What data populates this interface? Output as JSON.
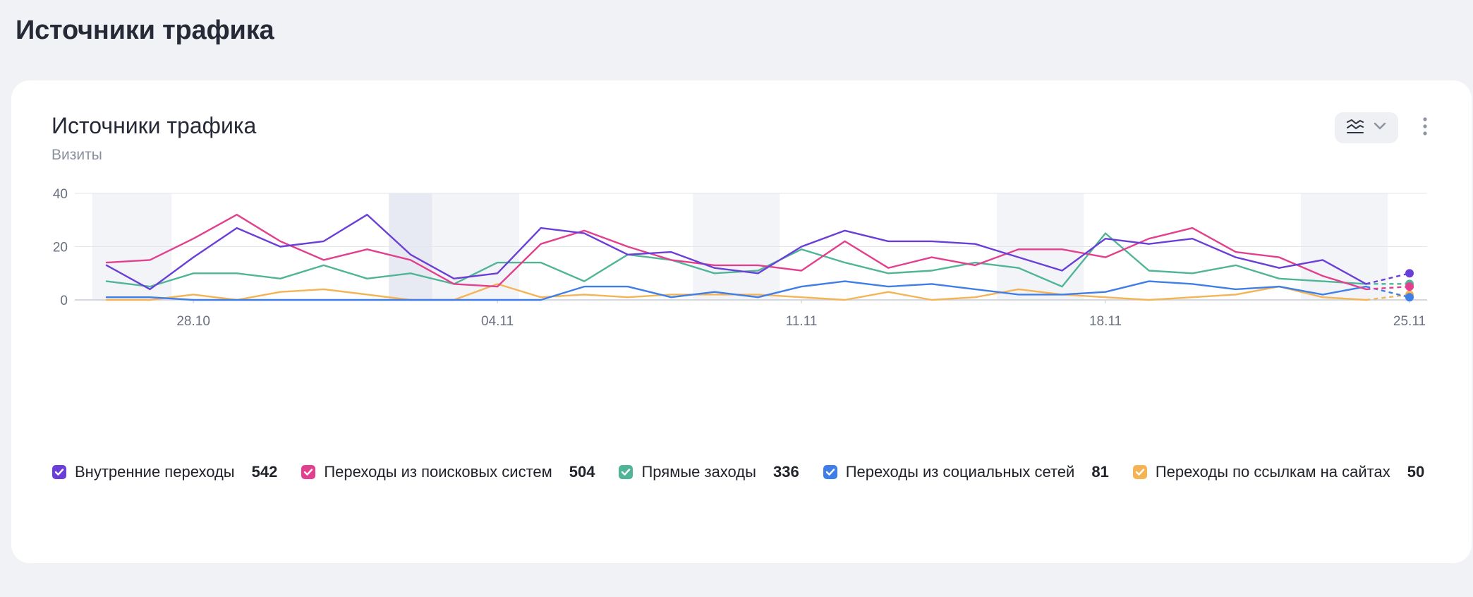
{
  "page": {
    "title": "Источники трафика"
  },
  "card": {
    "title": "Источники трафика",
    "subtitle": "Визиты"
  },
  "controls": {
    "view_icon": "chart-lines-icon",
    "dropdown_icon": "chevron-down-icon",
    "more_icon": "more-vertical-icon"
  },
  "chart_data": {
    "type": "line",
    "ylim": [
      0,
      40
    ],
    "y_ticks": [
      "0",
      "20",
      "40"
    ],
    "x_ticks": [
      {
        "label": "28.10",
        "index": 2
      },
      {
        "label": "04.11",
        "index": 9
      },
      {
        "label": "11.11",
        "index": 16
      },
      {
        "label": "18.11",
        "index": 23
      },
      {
        "label": "25.11",
        "index": 30
      }
    ],
    "incomplete_last_point": true,
    "grid": "horizontal",
    "legend_position": "bottom-left",
    "series": [
      {
        "name": "Внутренние переходы",
        "total": "542",
        "color": "#6a3fd8",
        "values": [
          13,
          4,
          16,
          27,
          20,
          22,
          32,
          17,
          8,
          10,
          27,
          25,
          17,
          18,
          12,
          10,
          20,
          26,
          22,
          22,
          21,
          16,
          11,
          23,
          21,
          23,
          16,
          12,
          15,
          6,
          10
        ]
      },
      {
        "name": "Переходы из поисковых систем",
        "total": "504",
        "color": "#e2408e",
        "values": [
          14,
          15,
          23,
          32,
          22,
          15,
          19,
          15,
          6,
          5,
          21,
          26,
          20,
          15,
          13,
          13,
          11,
          22,
          12,
          16,
          13,
          19,
          19,
          16,
          23,
          27,
          18,
          16,
          9,
          4,
          5
        ]
      },
      {
        "name": "Прямые заходы",
        "total": "336",
        "color": "#4fb596",
        "values": [
          7,
          5,
          10,
          10,
          8,
          13,
          8,
          10,
          6,
          14,
          14,
          7,
          17,
          15,
          10,
          11,
          19,
          14,
          10,
          11,
          14,
          12,
          5,
          25,
          11,
          10,
          13,
          8,
          7,
          6,
          6
        ]
      },
      {
        "name": "Переходы из социальных сетей",
        "total": "81",
        "color": "#3f7ee8",
        "values": [
          1,
          1,
          0,
          0,
          0,
          0,
          0,
          0,
          0,
          0,
          0,
          5,
          5,
          1,
          3,
          1,
          5,
          7,
          5,
          6,
          4,
          2,
          2,
          3,
          7,
          6,
          4,
          5,
          2,
          5,
          1
        ]
      },
      {
        "name": "Переходы по ссылкам на сайтах",
        "total": "50",
        "color": "#f4b455",
        "values": [
          0,
          0,
          2,
          0,
          3,
          4,
          2,
          0,
          0,
          6,
          1,
          2,
          1,
          2,
          2,
          2,
          1,
          0,
          3,
          0,
          1,
          4,
          2,
          1,
          0,
          1,
          2,
          5,
          1,
          0,
          2
        ]
      }
    ]
  }
}
